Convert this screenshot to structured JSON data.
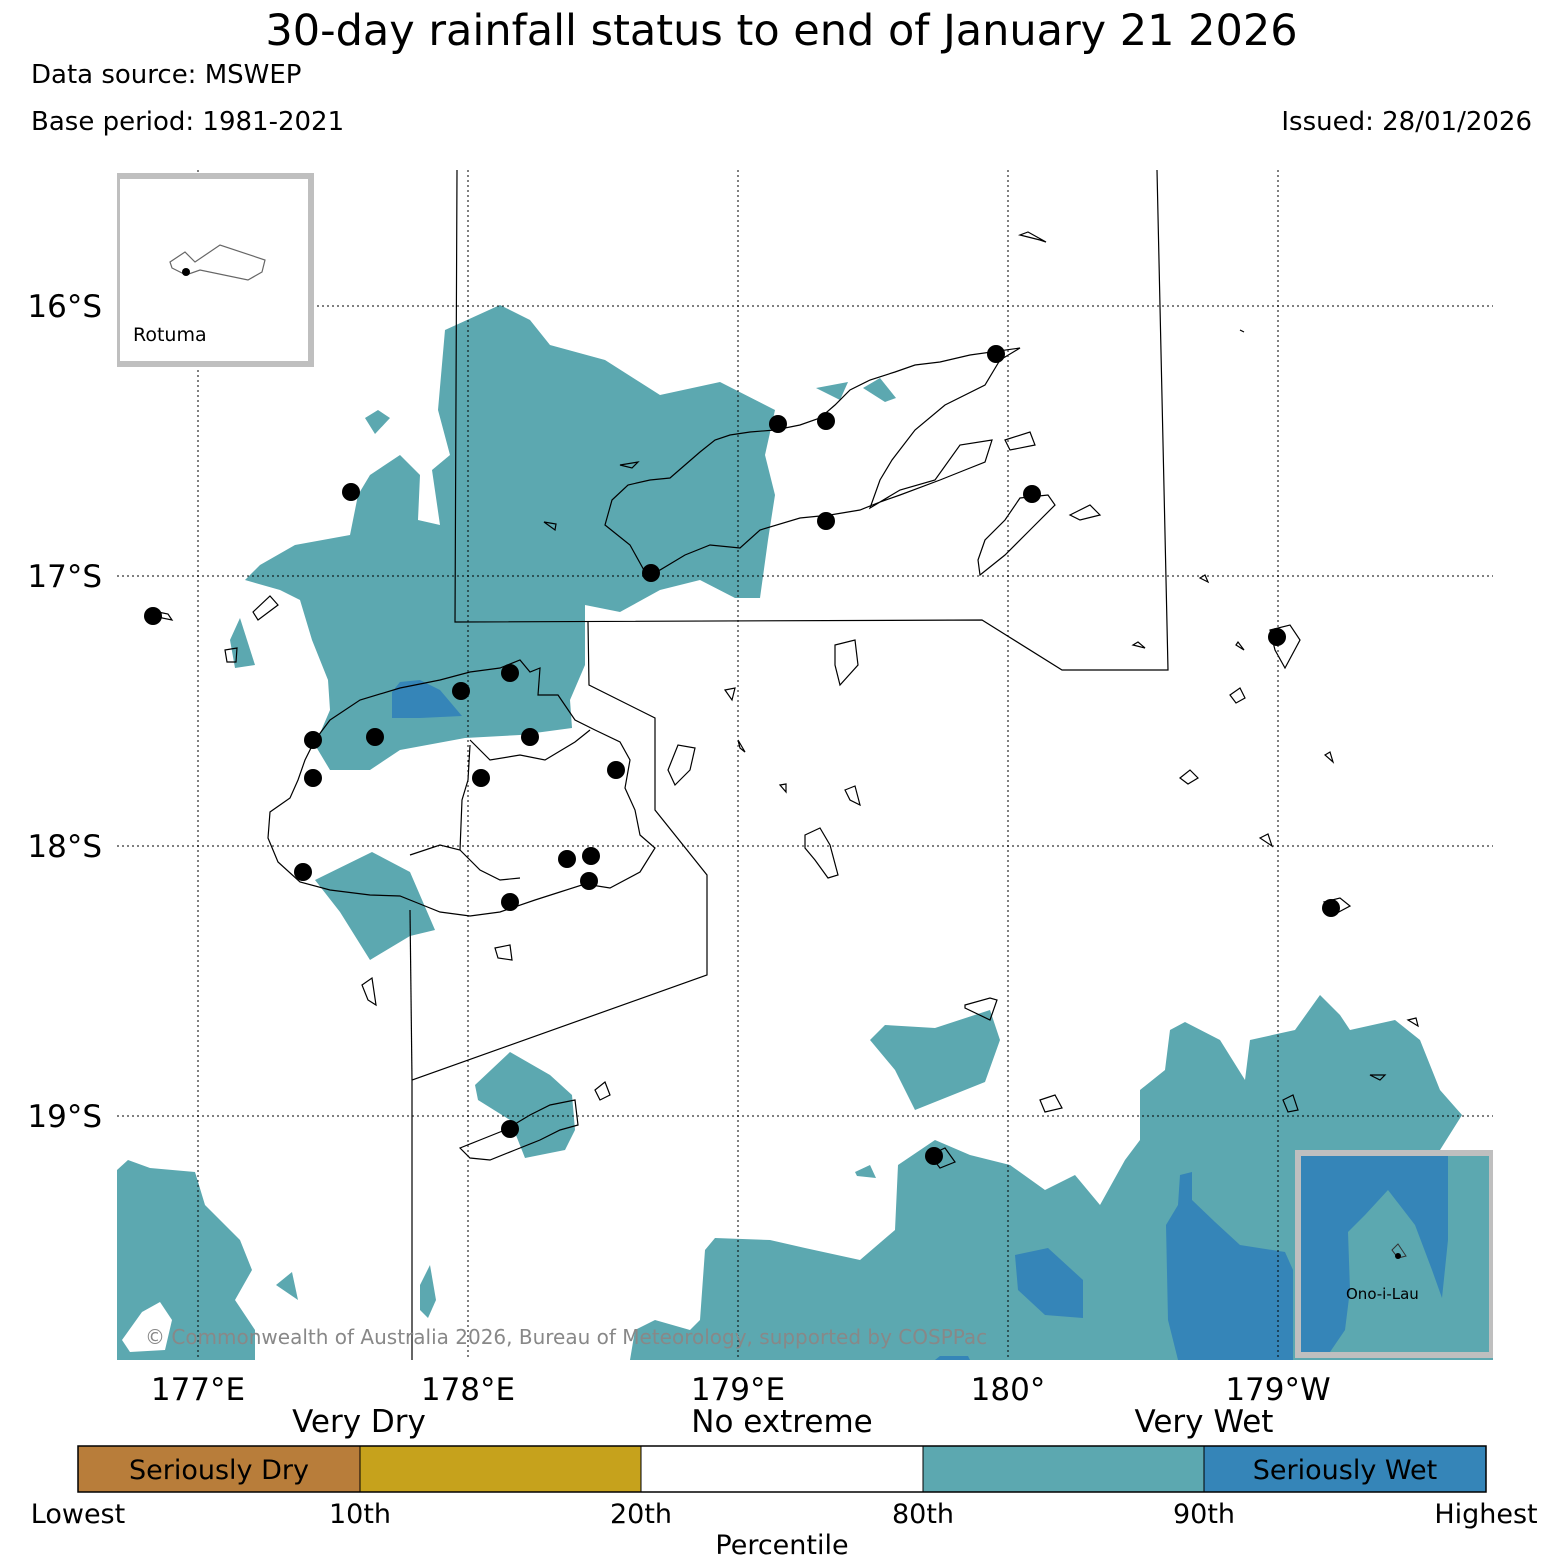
{
  "header": {
    "title": "30-day rainfall status to end of January 21 2026",
    "data_source": "Data source: MSWEP",
    "base_period": "Base period: 1981-2021",
    "issued": "Issued: 28/01/2026"
  },
  "map": {
    "lat_labels": [
      "16°S",
      "17°S",
      "18°S",
      "19°S"
    ],
    "lon_labels": [
      "177°E",
      "178°E",
      "179°E",
      "180°",
      "179°W"
    ],
    "copyright": "© Commonwealth of Australia 2026, Bureau of Meteorology, supported by COSPPac",
    "insets": [
      {
        "label": "Rotuma",
        "status": "No extreme"
      },
      {
        "label": "Ono-i-Lau",
        "status": "Very Wet"
      }
    ],
    "colors": {
      "seriously_dry": "#b87d3a",
      "very_dry": "#c6a21c",
      "no_extreme": "#ffffff",
      "very_wet": "#5ca8b0",
      "seriously_wet": "#3585b8"
    }
  },
  "legend": {
    "categories": [
      "Very Dry",
      "No extreme",
      "Very Wet"
    ],
    "segment_labels": [
      "Seriously Dry",
      "",
      "",
      "",
      "Seriously Wet"
    ],
    "percentiles": [
      "Lowest",
      "10th",
      "20th",
      "80th",
      "90th",
      "Highest"
    ],
    "axis_label": "Percentile",
    "colors": [
      "#b87d3a",
      "#c6a21c",
      "#ffffff",
      "#5ca8b0",
      "#3585b8"
    ]
  }
}
